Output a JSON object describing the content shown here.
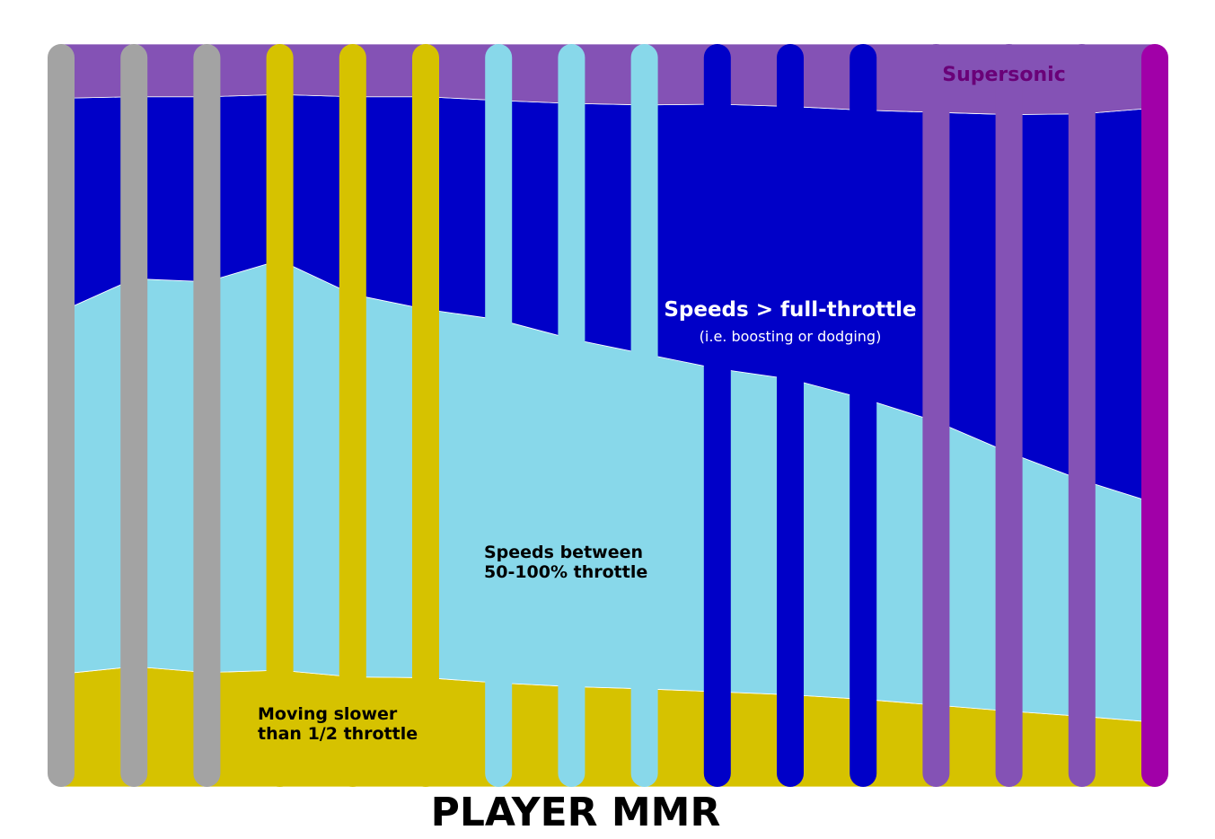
{
  "chart_data": {
    "type": "area",
    "stacking": "percent-100",
    "xlabel": "PLAYER MMR",
    "ylabel": "",
    "title": "",
    "legend": "none (labels drawn inside regions)",
    "grid": false,
    "colors": {
      "slow": "#D6C200",
      "mid": "#88D8EA",
      "fast": "#0000C8",
      "supersonic": "#8452B5",
      "supersonic_label": "#6A0078",
      "background": "#ffffff"
    },
    "x_positions": [
      0,
      1,
      2,
      3,
      4,
      5,
      6,
      7,
      8,
      9,
      10,
      11,
      12,
      13,
      14,
      15
    ],
    "series": [
      {
        "key": "slow",
        "values": [
          15.2,
          16.2,
          15.4,
          15.7,
          14.8,
          14.7,
          14.0,
          13.5,
          13.2,
          12.8,
          12.4,
          11.8,
          11.0,
          10.2,
          9.5,
          8.7
        ]
      },
      {
        "key": "mid",
        "values": [
          48.8,
          52.2,
          52.6,
          55.2,
          51.5,
          49.6,
          48.9,
          46.8,
          45.1,
          43.5,
          42.5,
          40.5,
          38.2,
          34.8,
          31.8,
          29.5
        ]
      },
      {
        "key": "fast",
        "values": [
          28.7,
          24.5,
          24.9,
          22.3,
          26.6,
          28.6,
          29.5,
          31.7,
          33.5,
          35.6,
          36.7,
          38.8,
          41.6,
          45.5,
          49.3,
          53.2
        ]
      },
      {
        "key": "supersonic",
        "values": [
          7.3,
          7.1,
          7.1,
          6.8,
          7.1,
          7.1,
          7.6,
          8.0,
          8.2,
          8.1,
          8.4,
          8.9,
          9.2,
          9.5,
          9.4,
          8.6
        ]
      }
    ],
    "rank_bars": [
      {
        "color": "#A3A3A3"
      },
      {
        "color": "#A3A3A3"
      },
      {
        "color": "#A3A3A3"
      },
      {
        "color": "#D6C200"
      },
      {
        "color": "#D6C200"
      },
      {
        "color": "#D6C200"
      },
      {
        "color": "#88D8EA"
      },
      {
        "color": "#88D8EA"
      },
      {
        "color": "#88D8EA"
      },
      {
        "color": "#0000C8"
      },
      {
        "color": "#0000C8"
      },
      {
        "color": "#0000C8"
      },
      {
        "color": "#8452B5"
      },
      {
        "color": "#8452B5"
      },
      {
        "color": "#8452B5"
      },
      {
        "color": "#A100A8"
      }
    ],
    "labels": {
      "supersonic": "Supersonic",
      "fast_title": "Speeds > full-throttle",
      "fast_sub": "(i.e. boosting or dodging)",
      "mid_line1": "Speeds between",
      "mid_line2": "50-100% throttle",
      "slow_line1": "Moving slower",
      "slow_line2": "than 1/2 throttle"
    }
  }
}
